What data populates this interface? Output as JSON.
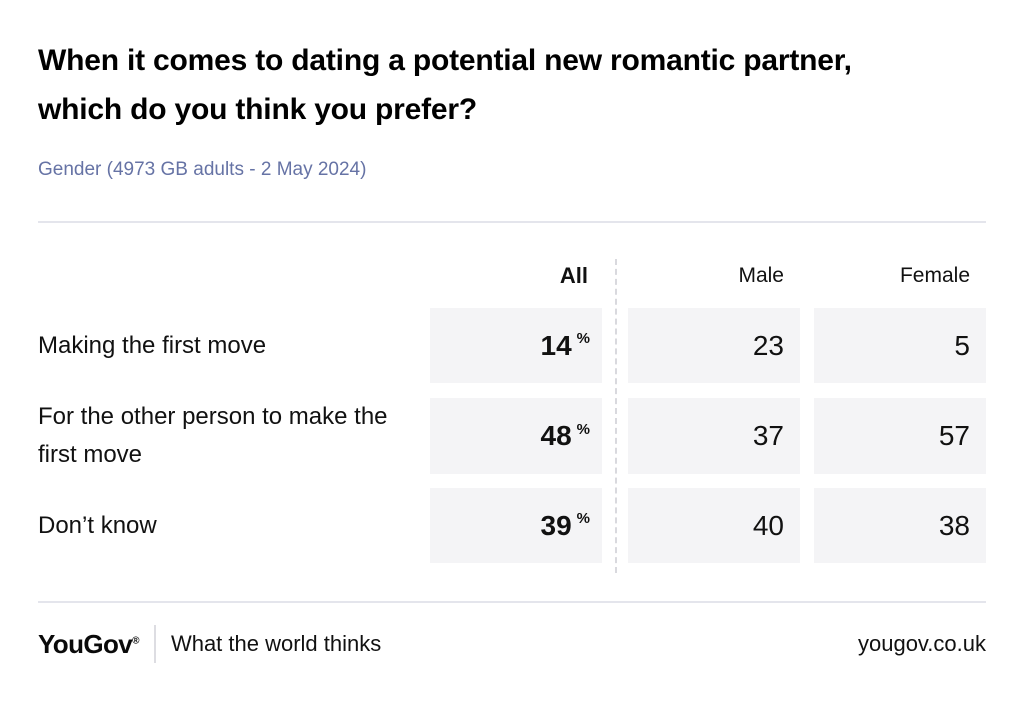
{
  "title": {
    "lines": [
      "When it comes to dating a potential new romantic partner,",
      "which do you think you prefer?"
    ]
  },
  "subtitle": "Gender (4973 GB adults - 2 May 2024)",
  "chart_data": {
    "type": "table",
    "title": "When it comes to dating a potential new romantic partner, which do you think you prefer?",
    "subtitle": "Gender (4973 GB adults - 2 May 2024)",
    "columns": [
      "All",
      "Male",
      "Female"
    ],
    "unit": "%",
    "categories": [
      "Making the first move",
      "For the other person to make the first move",
      "Don’t know"
    ],
    "series": [
      {
        "name": "All",
        "values": [
          14,
          48,
          39
        ]
      },
      {
        "name": "Male",
        "values": [
          23,
          37,
          40
        ]
      },
      {
        "name": "Female",
        "values": [
          5,
          57,
          38
        ]
      }
    ]
  },
  "table": {
    "columns": [
      "All",
      "Male",
      "Female"
    ],
    "rows": [
      {
        "label": "Making the first move",
        "all": "14",
        "unit": "%",
        "male": "23",
        "female": "5"
      },
      {
        "label": "For the other person to make the first move",
        "all": "48",
        "unit": "%",
        "male": "37",
        "female": "57"
      },
      {
        "label": "Don’t know",
        "all": "39",
        "unit": "%",
        "male": "40",
        "female": "38"
      }
    ]
  },
  "footer": {
    "logo": "YouGov",
    "registered_mark": "®",
    "tagline": "What the world thinks",
    "url": "yougov.co.uk"
  },
  "colors": {
    "subtitle_text": "#6673a5",
    "cell_background": "#f4f4f6",
    "divider": "#e4e5ec",
    "dashed_separator": "#d9d9de"
  }
}
